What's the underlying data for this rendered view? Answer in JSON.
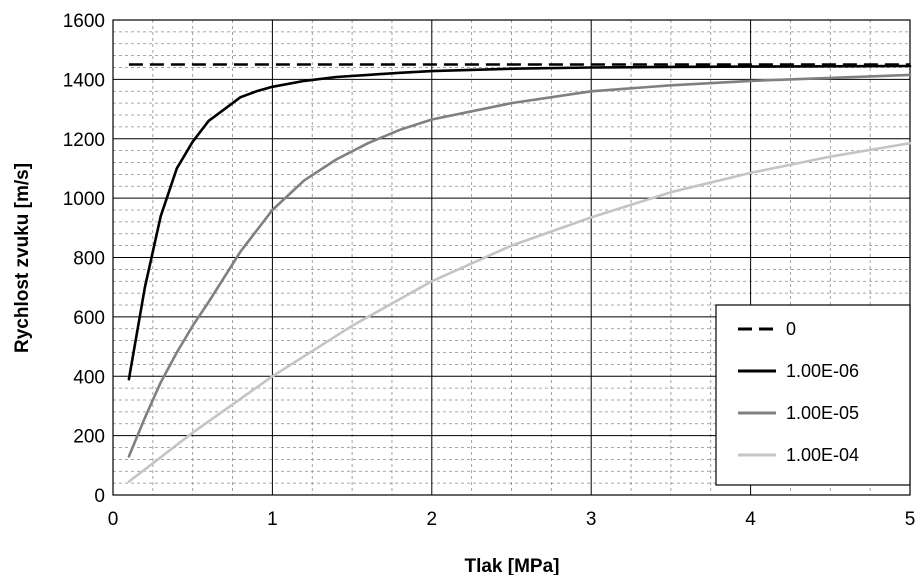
{
  "chart_data": {
    "type": "line",
    "title": "",
    "xlabel": "Tlak [MPa]",
    "ylabel": "Rychlost zvuku [m/s]",
    "xlim": [
      0,
      5
    ],
    "ylim": [
      0,
      1600
    ],
    "xticks": [
      "0",
      "1",
      "2",
      "3",
      "4",
      "5"
    ],
    "yticks": [
      "0",
      "200",
      "400",
      "600",
      "800",
      "1000",
      "1200",
      "1400",
      "1600"
    ],
    "grid": true,
    "legend_position": "bottom-right",
    "series": [
      {
        "name": "0",
        "style": "dashed",
        "color": "#000000",
        "x": [
          0.1,
          5
        ],
        "y": [
          1450,
          1450
        ]
      },
      {
        "name": "1.00E-06",
        "style": "solid",
        "color": "#000000",
        "x": [
          0.1,
          0.2,
          0.3,
          0.4,
          0.5,
          0.6,
          0.7,
          0.8,
          0.9,
          1.0,
          1.2,
          1.4,
          1.6,
          1.8,
          2.0,
          2.5,
          3.0,
          3.5,
          4.0,
          4.5,
          5.0
        ],
        "y": [
          390,
          700,
          940,
          1100,
          1190,
          1260,
          1300,
          1340,
          1360,
          1375,
          1395,
          1408,
          1415,
          1422,
          1428,
          1436,
          1440,
          1442,
          1443,
          1444,
          1445
        ]
      },
      {
        "name": "1.00E-05",
        "style": "solid",
        "color": "#808080",
        "x": [
          0.1,
          0.2,
          0.3,
          0.4,
          0.5,
          0.6,
          0.8,
          1.0,
          1.2,
          1.4,
          1.6,
          1.8,
          2.0,
          2.5,
          3.0,
          3.5,
          4.0,
          4.5,
          5.0
        ],
        "y": [
          130,
          260,
          380,
          480,
          570,
          650,
          820,
          960,
          1060,
          1130,
          1185,
          1230,
          1265,
          1320,
          1360,
          1380,
          1395,
          1405,
          1415
        ]
      },
      {
        "name": "1.00E-04",
        "style": "solid",
        "color": "#c4c4c4",
        "x": [
          0.1,
          0.5,
          1.0,
          1.5,
          2.0,
          2.5,
          3.0,
          3.5,
          4.0,
          4.5,
          5.0
        ],
        "y": [
          45,
          210,
          400,
          570,
          720,
          840,
          935,
          1020,
          1085,
          1140,
          1185
        ]
      }
    ]
  }
}
